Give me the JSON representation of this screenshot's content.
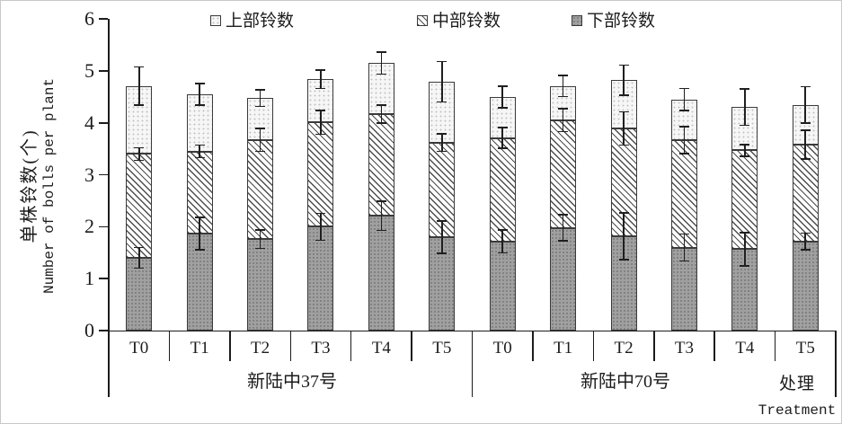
{
  "chart_data": {
    "type": "bar",
    "stacked": true,
    "orientation": "vertical",
    "title": "",
    "ylabel_zh": "单株铃数(个)",
    "ylabel_en": "Number of bolls per plant",
    "xlabel_zh": "处理",
    "xlabel_en": "Treatment",
    "ylim": [
      0,
      6
    ],
    "yticks": [
      "0",
      "1",
      "2",
      "3",
      "4",
      "5",
      "6"
    ],
    "grid": false,
    "legend_position": "top-inside",
    "legend": [
      {
        "key": "upper",
        "label": "上部铃数",
        "fill": "light-stipple"
      },
      {
        "key": "middle",
        "label": "中部铃数",
        "fill": "diagonal-hatch"
      },
      {
        "key": "lower",
        "label": "下部铃数",
        "fill": "gray-stipple"
      }
    ],
    "categories": [
      "T0",
      "T1",
      "T2",
      "T3",
      "T4",
      "T5"
    ],
    "groups": [
      {
        "name": "新陆中37号",
        "bars": [
          {
            "category": "T0",
            "lower": 1.4,
            "middle": 2.0,
            "upper": 1.31,
            "total": 4.71,
            "err_lower": 0.2,
            "err_middle": 0.12,
            "err_total": 0.37
          },
          {
            "category": "T1",
            "lower": 1.87,
            "middle": 1.58,
            "upper": 1.1,
            "total": 4.55,
            "err_lower": 0.31,
            "err_middle": 0.12,
            "err_total": 0.21
          },
          {
            "category": "T2",
            "lower": 1.76,
            "middle": 1.91,
            "upper": 0.81,
            "total": 4.48,
            "err_lower": 0.18,
            "err_middle": 0.22,
            "err_total": 0.16
          },
          {
            "category": "T3",
            "lower": 2.0,
            "middle": 2.01,
            "upper": 0.83,
            "total": 4.84,
            "err_lower": 0.26,
            "err_middle": 0.23,
            "err_total": 0.18
          },
          {
            "category": "T4",
            "lower": 2.21,
            "middle": 1.96,
            "upper": 0.98,
            "total": 5.15,
            "err_lower": 0.28,
            "err_middle": 0.17,
            "err_total": 0.21
          },
          {
            "category": "T5",
            "lower": 1.8,
            "middle": 1.82,
            "upper": 1.17,
            "total": 4.79,
            "err_lower": 0.31,
            "err_middle": 0.17,
            "err_total": 0.39
          }
        ]
      },
      {
        "name": "新陆中70号",
        "bars": [
          {
            "category": "T0",
            "lower": 1.72,
            "middle": 1.99,
            "upper": 0.79,
            "total": 4.5,
            "err_lower": 0.22,
            "err_middle": 0.2,
            "err_total": 0.21
          },
          {
            "category": "T1",
            "lower": 1.98,
            "middle": 2.07,
            "upper": 0.66,
            "total": 4.71,
            "err_lower": 0.25,
            "err_middle": 0.22,
            "err_total": 0.2
          },
          {
            "category": "T2",
            "lower": 1.82,
            "middle": 2.07,
            "upper": 0.93,
            "total": 4.82,
            "err_lower": 0.45,
            "err_middle": 0.32,
            "err_total": 0.29
          },
          {
            "category": "T3",
            "lower": 1.6,
            "middle": 2.07,
            "upper": 0.78,
            "total": 4.45,
            "err_lower": 0.26,
            "err_middle": 0.26,
            "err_total": 0.21
          },
          {
            "category": "T4",
            "lower": 1.57,
            "middle": 1.9,
            "upper": 0.83,
            "total": 4.3,
            "err_lower": 0.32,
            "err_middle": 0.11,
            "err_total": 0.35
          },
          {
            "category": "T5",
            "lower": 1.72,
            "middle": 1.86,
            "upper": 0.77,
            "total": 4.35,
            "err_lower": 0.16,
            "err_middle": 0.28,
            "err_total": 0.35
          }
        ]
      }
    ],
    "colors": {
      "axis": "#1c1c1c",
      "text": "#1c1c1c",
      "bar_border": "#3a3a3a",
      "lower_fill": "#a0a0a0",
      "middle_hatch": "#4d4d4d",
      "upper_fill": "#f6f6f6"
    }
  }
}
